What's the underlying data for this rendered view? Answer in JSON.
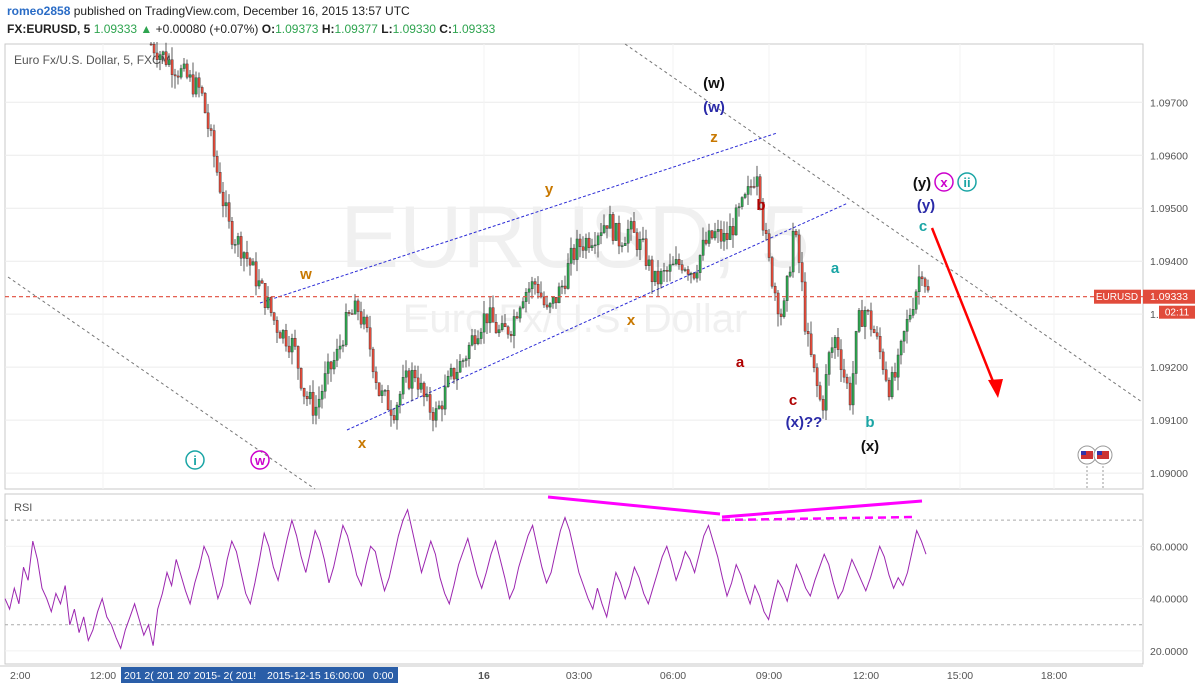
{
  "header": {
    "author": "romeo2858",
    "published": "published on TradingView.com, December 16, 2015 13:57 UTC",
    "symbol": "FX:EURUSD, 5",
    "last": "1.09333",
    "change_arrow": "▲",
    "change": "+0.00080 (+0.07%)",
    "o_label": "O:",
    "o": "1.09373",
    "h_label": "H:",
    "h": "1.09377",
    "l_label": "L:",
    "l": "1.09330",
    "c_label": "C:",
    "c": "1.09333"
  },
  "pane_title": "Euro Fx/U.S. Dollar, 5, FXCM",
  "watermark": {
    "line1": "EURUSD, 5",
    "line2": "Euro Fx/U.S. Dollar"
  },
  "rsi_label": "RSI",
  "price_tag": {
    "label": "EURUSD",
    "value": "1.09333",
    "countdown": "02:11"
  },
  "colors": {
    "up": "#2ea44f",
    "down": "#e14b3b",
    "rsi": "#9c27b0",
    "pink": "#ff00ff",
    "blue_dotted": "#2b2bd6",
    "red_arrow": "#ff0000",
    "price_line": "#e14b3b"
  },
  "time_labels": [
    "2:00",
    "12:00",
    "16",
    "03:00",
    "06:00",
    "09:00",
    "12:00",
    "15:00",
    "18:00"
  ],
  "time_highlight": [
    "2015-12-15 16:00:00",
    "0:00"
  ],
  "time_highlight_prefix": "201 2( 201 20' 2015- 2( 201!",
  "chart_data": [
    {
      "type": "candlestick",
      "title": "Euro Fx/U.S. Dollar, 5, FXCM",
      "ylim": [
        1.0897,
        1.0981
      ],
      "yticks": [
        "1.09000",
        "1.09100",
        "1.09200",
        "1.09300",
        "1.09400",
        "1.09500",
        "1.09600",
        "1.09700"
      ],
      "last_price": 1.09333,
      "close_path": [
        [
          0,
          1.0981
        ],
        [
          0.07,
          1.0972
        ],
        [
          0.085,
          1.0962
        ],
        [
          0.1,
          1.0952
        ],
        [
          0.11,
          1.0946
        ],
        [
          0.13,
          1.0942
        ],
        [
          0.15,
          1.0936
        ],
        [
          0.16,
          1.0933
        ],
        [
          0.175,
          1.0928
        ],
        [
          0.2,
          1.0924
        ],
        [
          0.215,
          1.0915
        ],
        [
          0.23,
          1.0912
        ],
        [
          0.245,
          1.0918
        ],
        [
          0.26,
          1.0922
        ],
        [
          0.275,
          1.0929
        ],
        [
          0.29,
          1.0931
        ],
        [
          0.305,
          1.0925
        ],
        [
          0.32,
          1.0915
        ],
        [
          0.34,
          1.0912
        ],
        [
          0.355,
          1.0917
        ],
        [
          0.37,
          1.0919
        ],
        [
          0.385,
          1.0913
        ],
        [
          0.4,
          1.0911
        ],
        [
          0.42,
          1.0918
        ],
        [
          0.44,
          1.0922
        ],
        [
          0.455,
          1.0927
        ],
        [
          0.47,
          1.093
        ],
        [
          0.49,
          1.0926
        ],
        [
          0.505,
          1.0928
        ],
        [
          0.52,
          1.0934
        ],
        [
          0.54,
          1.0936
        ],
        [
          0.555,
          1.093
        ],
        [
          0.575,
          1.0935
        ],
        [
          0.59,
          1.0941
        ],
        [
          0.6,
          1.0943
        ],
        [
          0.62,
          1.0945
        ],
        [
          0.64,
          1.0948
        ],
        [
          0.655,
          1.0944
        ],
        [
          0.67,
          1.0946
        ],
        [
          0.69,
          1.0942
        ],
        [
          0.705,
          1.0936
        ],
        [
          0.725,
          1.0938
        ],
        [
          0.745,
          1.094
        ],
        [
          0.76,
          1.0938
        ],
        [
          0.775,
          1.0943
        ],
        [
          0.79,
          1.0945
        ],
        [
          0.805,
          1.0944
        ],
        [
          0.82,
          1.0948
        ],
        [
          0.835,
          1.0952
        ],
        [
          0.845,
          1.0956
        ],
        [
          0.85,
          1.0958
        ],
        [
          0.857,
          1.0948
        ],
        [
          0.865,
          1.094
        ],
        [
          0.875,
          1.0934
        ],
        [
          0.885,
          1.0929
        ],
        [
          0.893,
          1.0937
        ],
        [
          0.9,
          1.0946
        ],
        [
          0.91,
          1.0938
        ],
        [
          0.918,
          1.0926
        ],
        [
          0.93,
          1.0918
        ],
        [
          0.94,
          1.0912
        ],
        [
          0.95,
          1.0922
        ],
        [
          0.96,
          1.0926
        ],
        [
          0.97,
          1.0919
        ],
        [
          0.98,
          1.0914
        ],
        [
          0.99,
          1.0928
        ],
        [
          1.0,
          1.0931
        ],
        [
          1.012,
          1.0927
        ],
        [
          1.025,
          1.0921
        ],
        [
          1.035,
          1.0916
        ],
        [
          1.045,
          1.0919
        ],
        [
          1.055,
          1.0926
        ],
        [
          1.07,
          1.0934
        ],
        [
          1.08,
          1.0939
        ],
        [
          1.09,
          1.0933
        ]
      ]
    },
    {
      "type": "line",
      "title": "RSI",
      "ylim": [
        15,
        80
      ],
      "yticks": [
        "20.0000",
        "40.0000",
        "60.0000"
      ],
      "levels": [
        30,
        70
      ],
      "values": [
        40,
        36,
        44,
        38,
        52,
        47,
        62,
        55,
        44,
        40,
        35,
        42,
        38,
        45,
        30,
        36,
        27,
        33,
        24,
        28,
        35,
        40,
        33,
        30,
        25,
        21,
        28,
        33,
        38,
        32,
        26,
        30,
        22,
        36,
        42,
        50,
        45,
        55,
        49,
        43,
        38,
        46,
        52,
        60,
        56,
        48,
        40,
        45,
        55,
        62,
        58,
        50,
        42,
        38,
        46,
        55,
        65,
        60,
        52,
        47,
        55,
        63,
        70,
        64,
        56,
        50,
        58,
        66,
        62,
        55,
        46,
        52,
        60,
        68,
        64,
        57,
        49,
        45,
        53,
        60,
        58,
        50,
        43,
        48,
        56,
        64,
        70,
        74,
        66,
        58,
        50,
        56,
        62,
        57,
        48,
        42,
        38,
        45,
        53,
        58,
        63,
        56,
        49,
        44,
        50,
        57,
        62,
        55,
        48,
        40,
        44,
        52,
        58,
        64,
        68,
        60,
        52,
        46,
        50,
        58,
        66,
        71,
        66,
        58,
        50,
        45,
        40,
        36,
        44,
        38,
        33,
        42,
        50,
        46,
        40,
        45,
        52,
        48,
        42,
        38,
        44,
        50,
        56,
        60,
        54,
        47,
        52,
        58,
        55,
        50,
        57,
        64,
        68,
        62,
        56,
        48,
        41,
        46,
        53,
        49,
        43,
        38,
        45,
        41,
        35,
        32,
        40,
        47,
        44,
        39,
        46,
        53,
        49,
        44,
        41,
        47,
        52,
        57,
        53,
        46,
        40,
        43,
        49,
        55,
        51,
        47,
        43,
        48,
        54,
        60,
        56,
        49,
        44,
        48,
        45,
        50,
        58,
        66,
        62,
        57
      ]
    }
  ],
  "annotations": {
    "w_black": "(w)",
    "w_blue": "(w)",
    "z": "z",
    "y_orange": "y",
    "w_orange": "w",
    "x_orange1": "x",
    "x_orange2": "x",
    "b_red": "b",
    "a_red": "a",
    "c_red": "c",
    "a_teal": "a",
    "b_teal": "b",
    "c_teal": "c",
    "x_blue": "(x)??",
    "x_black": "(x)",
    "y_black": "(y)",
    "y_blue": "(y)",
    "x_circled": "x",
    "ii_circled": "ii",
    "i_circled": "i",
    "w_circled": "w"
  }
}
